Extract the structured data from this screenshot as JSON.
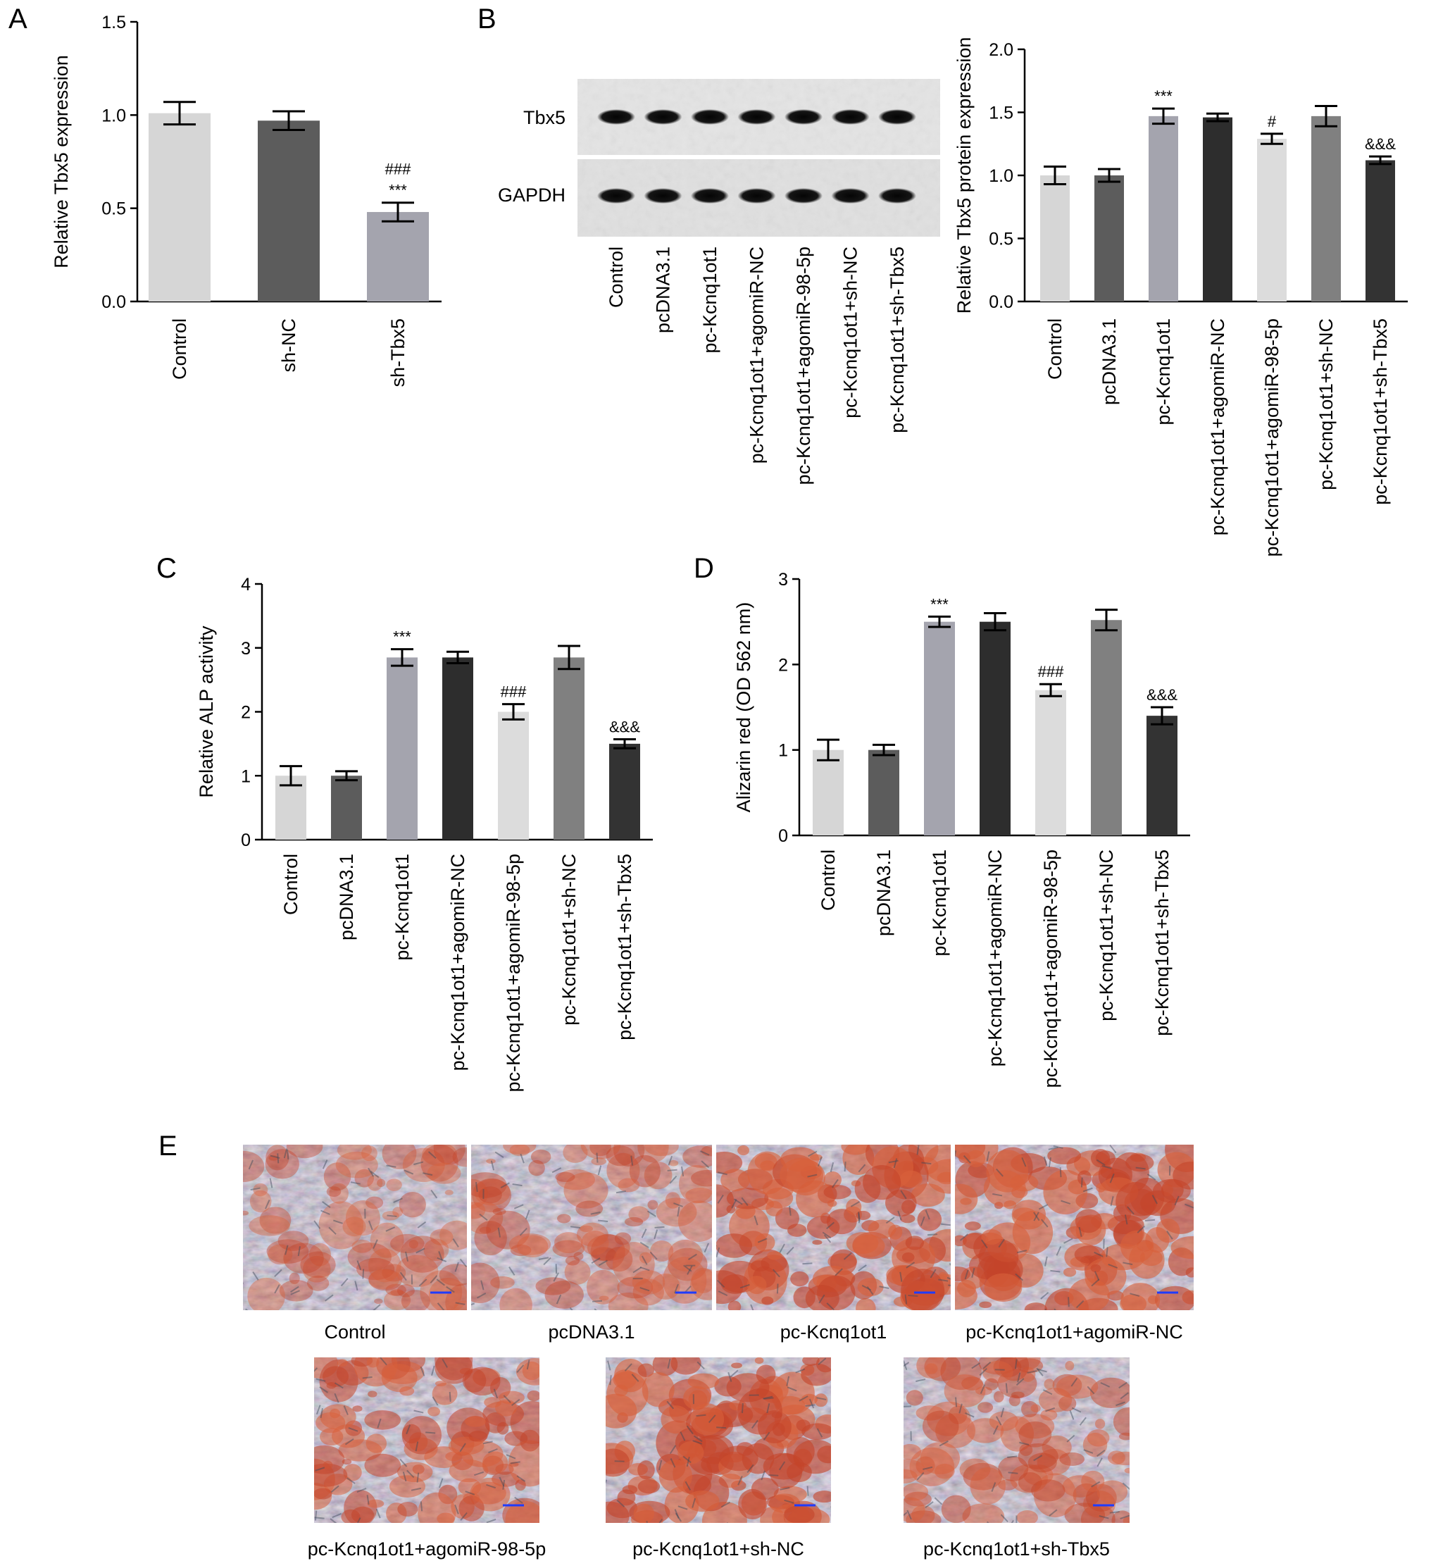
{
  "figure": {
    "panels": {
      "A": "A",
      "B": "B",
      "C": "C",
      "D": "D",
      "E": "E"
    }
  },
  "colors": {
    "Control": "#d6d6d6",
    "sh-NC": "#5c5c5c",
    "sh-Tbx5": "#a4a4ae",
    "pcDNA3.1": "#5c5c5c",
    "pc-Kcnq1ot1": "#a4a4ae",
    "pc-Kcnq1ot1+agomiR-NC": "#2d2d2d",
    "pc-Kcnq1ot1+agomiR-98-5p": "#dcdcdc",
    "pc-Kcnq1ot1+sh-NC": "#808080",
    "pc-Kcnq1ot1+sh-Tbx5": "#333333"
  },
  "chart_data": [
    {
      "panel": "A",
      "type": "bar",
      "categories": [
        "Control",
        "sh-NC",
        "sh-Tbx5"
      ],
      "values": [
        1.01,
        0.97,
        0.48
      ],
      "errors": [
        0.06,
        0.05,
        0.05
      ],
      "annotations": [
        "",
        "",
        "###\n***"
      ],
      "ylabel": "Relative Tbx5 expression",
      "ylim": [
        0,
        1.5
      ],
      "yticks": [
        "0.0",
        "0.5",
        "1.0",
        "1.5"
      ],
      "ytick_values": [
        0,
        0.5,
        1.0,
        1.5
      ]
    },
    {
      "panel": "B",
      "type": "bar",
      "categories": [
        "Control",
        "pcDNA3.1",
        "pc-Kcnq1ot1",
        "pc-Kcnq1ot1+agomiR-NC",
        "pc-Kcnq1ot1+agomiR-98-5p",
        "pc-Kcnq1ot1+sh-NC",
        "pc-Kcnq1ot1+sh-Tbx5"
      ],
      "values": [
        1.0,
        1.0,
        1.47,
        1.46,
        1.29,
        1.47,
        1.12
      ],
      "errors": [
        0.07,
        0.05,
        0.06,
        0.03,
        0.04,
        0.08,
        0.03
      ],
      "annotations": [
        "",
        "",
        "***",
        "",
        "#",
        "",
        "&&&"
      ],
      "ylabel": "Relative Tbx5 protein expression",
      "ylim": [
        0,
        2.0
      ],
      "yticks": [
        "0.0",
        "0.5",
        "1.0",
        "1.5",
        "2.0"
      ],
      "ytick_values": [
        0,
        0.5,
        1.0,
        1.5,
        2.0
      ]
    },
    {
      "panel": "C",
      "type": "bar",
      "categories": [
        "Control",
        "pcDNA3.1",
        "pc-Kcnq1ot1",
        "pc-Kcnq1ot1+agomiR-NC",
        "pc-Kcnq1ot1+agomiR-98-5p",
        "pc-Kcnq1ot1+sh-NC",
        "pc-Kcnq1ot1+sh-Tbx5"
      ],
      "values": [
        1.0,
        1.0,
        2.85,
        2.85,
        2.0,
        2.85,
        1.5
      ],
      "errors": [
        0.15,
        0.07,
        0.13,
        0.09,
        0.12,
        0.18,
        0.07
      ],
      "annotations": [
        "",
        "",
        "***",
        "",
        "###",
        "",
        "&&&"
      ],
      "ylabel": "Relative ALP activity",
      "ylim": [
        0,
        4
      ],
      "yticks": [
        "0",
        "1",
        "2",
        "3",
        "4"
      ],
      "ytick_values": [
        0,
        1,
        2,
        3,
        4
      ]
    },
    {
      "panel": "D",
      "type": "bar",
      "categories": [
        "Control",
        "pcDNA3.1",
        "pc-Kcnq1ot1",
        "pc-Kcnq1ot1+agomiR-NC",
        "pc-Kcnq1ot1+agomiR-98-5p",
        "pc-Kcnq1ot1+sh-NC",
        "pc-Kcnq1ot1+sh-Tbx5"
      ],
      "values": [
        1.0,
        1.0,
        2.5,
        2.5,
        1.7,
        2.52,
        1.4
      ],
      "errors": [
        0.12,
        0.06,
        0.06,
        0.1,
        0.07,
        0.12,
        0.1
      ],
      "annotations": [
        "",
        "",
        "***",
        "",
        "###",
        "",
        "&&&"
      ],
      "ylabel": "Alizarin red (OD 562 nm)",
      "ylim": [
        0,
        3
      ],
      "yticks": [
        "0",
        "1",
        "2",
        "3"
      ],
      "ytick_values": [
        0,
        1,
        2,
        3
      ]
    }
  ],
  "blot": {
    "row_labels": [
      "Tbx5",
      "GAPDH"
    ],
    "lanes": [
      "Control",
      "pcDNA3.1",
      "pc-Kcnq1ot1",
      "pc-Kcnq1ot1+agomiR-NC",
      "pc-Kcnq1ot1+agomiR-98-5p",
      "pc-Kcnq1ot1+sh-NC",
      "pc-Kcnq1ot1+sh-Tbx5"
    ]
  },
  "micrographs": {
    "captions": [
      "Control",
      "pcDNA3.1",
      "pc-Kcnq1ot1",
      "pc-Kcnq1ot1+agomiR-NC",
      "pc-Kcnq1ot1+agomiR-98-5p",
      "pc-Kcnq1ot1+sh-NC",
      "pc-Kcnq1ot1+sh-Tbx5"
    ],
    "stain_level": [
      0.35,
      0.45,
      0.8,
      0.8,
      0.65,
      0.8,
      0.55
    ]
  }
}
